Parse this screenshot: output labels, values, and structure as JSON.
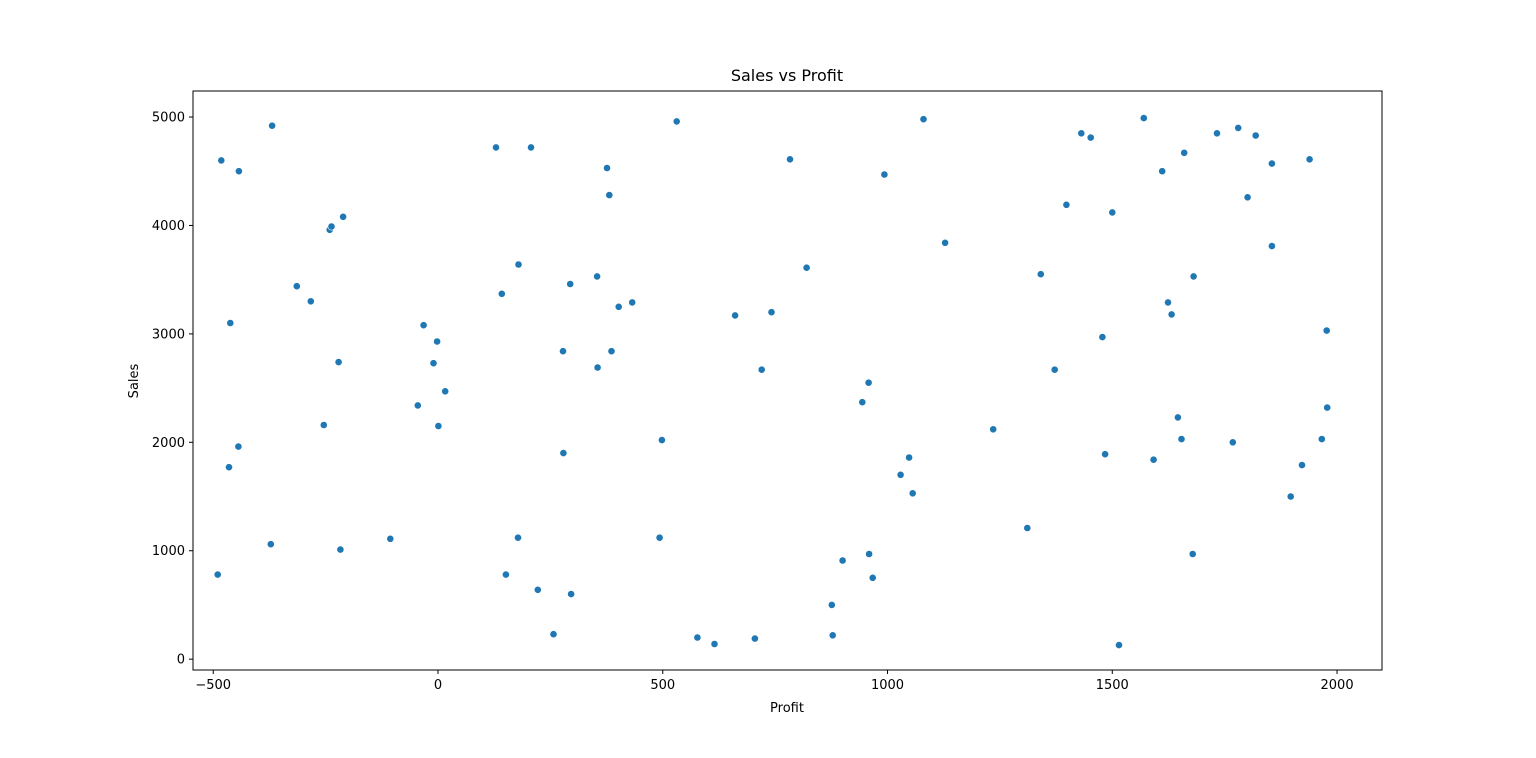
{
  "chart_data": {
    "type": "scatter",
    "title": "Sales vs Profit",
    "xlabel": "Profit",
    "ylabel": "Sales",
    "xlim": [
      -545,
      2100
    ],
    "ylim": [
      -100,
      5240
    ],
    "x_ticks": [
      -500,
      0,
      500,
      1000,
      1500,
      2000
    ],
    "y_ticks": [
      0,
      1000,
      2000,
      3000,
      4000,
      5000
    ],
    "grid": false,
    "marker_color": "#1f77b4",
    "points": [
      {
        "x": -490,
        "y": 780
      },
      {
        "x": -482,
        "y": 4600
      },
      {
        "x": -465,
        "y": 1770
      },
      {
        "x": -462,
        "y": 3100
      },
      {
        "x": -444,
        "y": 1960
      },
      {
        "x": -443,
        "y": 4500
      },
      {
        "x": -372,
        "y": 1060
      },
      {
        "x": -369,
        "y": 4920
      },
      {
        "x": -314,
        "y": 3440
      },
      {
        "x": -283,
        "y": 3300
      },
      {
        "x": -254,
        "y": 2160
      },
      {
        "x": -241,
        "y": 3960
      },
      {
        "x": -237,
        "y": 3990
      },
      {
        "x": -221,
        "y": 2740
      },
      {
        "x": -217,
        "y": 1010
      },
      {
        "x": -211,
        "y": 4080
      },
      {
        "x": -106,
        "y": 1110
      },
      {
        "x": -45,
        "y": 2340
      },
      {
        "x": -32,
        "y": 3080
      },
      {
        "x": -10,
        "y": 2730
      },
      {
        "x": -2,
        "y": 2930
      },
      {
        "x": 1,
        "y": 2150
      },
      {
        "x": 16,
        "y": 2470
      },
      {
        "x": 129,
        "y": 4720
      },
      {
        "x": 142,
        "y": 3370
      },
      {
        "x": 151,
        "y": 780
      },
      {
        "x": 178,
        "y": 1120
      },
      {
        "x": 179,
        "y": 3640
      },
      {
        "x": 207,
        "y": 4720
      },
      {
        "x": 222,
        "y": 640
      },
      {
        "x": 257,
        "y": 230
      },
      {
        "x": 278,
        "y": 2840
      },
      {
        "x": 279,
        "y": 1900
      },
      {
        "x": 294,
        "y": 3460
      },
      {
        "x": 296,
        "y": 600
      },
      {
        "x": 354,
        "y": 3530
      },
      {
        "x": 355,
        "y": 2690
      },
      {
        "x": 376,
        "y": 4530
      },
      {
        "x": 381,
        "y": 4280
      },
      {
        "x": 386,
        "y": 2840
      },
      {
        "x": 402,
        "y": 3250
      },
      {
        "x": 432,
        "y": 3290
      },
      {
        "x": 493,
        "y": 1120
      },
      {
        "x": 498,
        "y": 2020
      },
      {
        "x": 531,
        "y": 4960
      },
      {
        "x": 577,
        "y": 200
      },
      {
        "x": 615,
        "y": 140
      },
      {
        "x": 661,
        "y": 3170
      },
      {
        "x": 705,
        "y": 190
      },
      {
        "x": 720,
        "y": 2670
      },
      {
        "x": 742,
        "y": 3200
      },
      {
        "x": 783,
        "y": 4610
      },
      {
        "x": 820,
        "y": 3610
      },
      {
        "x": 876,
        "y": 500
      },
      {
        "x": 878,
        "y": 220
      },
      {
        "x": 900,
        "y": 910
      },
      {
        "x": 944,
        "y": 2370
      },
      {
        "x": 958,
        "y": 2550
      },
      {
        "x": 959,
        "y": 970
      },
      {
        "x": 967,
        "y": 750
      },
      {
        "x": 993,
        "y": 4470
      },
      {
        "x": 1029,
        "y": 1700
      },
      {
        "x": 1048,
        "y": 1860
      },
      {
        "x": 1056,
        "y": 1530
      },
      {
        "x": 1080,
        "y": 4980
      },
      {
        "x": 1128,
        "y": 3840
      },
      {
        "x": 1235,
        "y": 2120
      },
      {
        "x": 1311,
        "y": 1210
      },
      {
        "x": 1341,
        "y": 3550
      },
      {
        "x": 1372,
        "y": 2670
      },
      {
        "x": 1398,
        "y": 4190
      },
      {
        "x": 1431,
        "y": 4850
      },
      {
        "x": 1452,
        "y": 4810
      },
      {
        "x": 1478,
        "y": 2970
      },
      {
        "x": 1484,
        "y": 1890
      },
      {
        "x": 1500,
        "y": 4120
      },
      {
        "x": 1515,
        "y": 130
      },
      {
        "x": 1570,
        "y": 4990
      },
      {
        "x": 1592,
        "y": 1840
      },
      {
        "x": 1611,
        "y": 4500
      },
      {
        "x": 1624,
        "y": 3290
      },
      {
        "x": 1632,
        "y": 3180
      },
      {
        "x": 1646,
        "y": 2230
      },
      {
        "x": 1654,
        "y": 2030
      },
      {
        "x": 1660,
        "y": 4670
      },
      {
        "x": 1679,
        "y": 970
      },
      {
        "x": 1681,
        "y": 3530
      },
      {
        "x": 1733,
        "y": 4850
      },
      {
        "x": 1768,
        "y": 2000
      },
      {
        "x": 1780,
        "y": 4900
      },
      {
        "x": 1801,
        "y": 4260
      },
      {
        "x": 1819,
        "y": 4830
      },
      {
        "x": 1855,
        "y": 3810
      },
      {
        "x": 1855,
        "y": 4570
      },
      {
        "x": 1897,
        "y": 1500
      },
      {
        "x": 1922,
        "y": 1790
      },
      {
        "x": 1939,
        "y": 4610
      },
      {
        "x": 1966,
        "y": 2030
      },
      {
        "x": 1977,
        "y": 3030
      },
      {
        "x": 1978,
        "y": 2320
      }
    ]
  }
}
